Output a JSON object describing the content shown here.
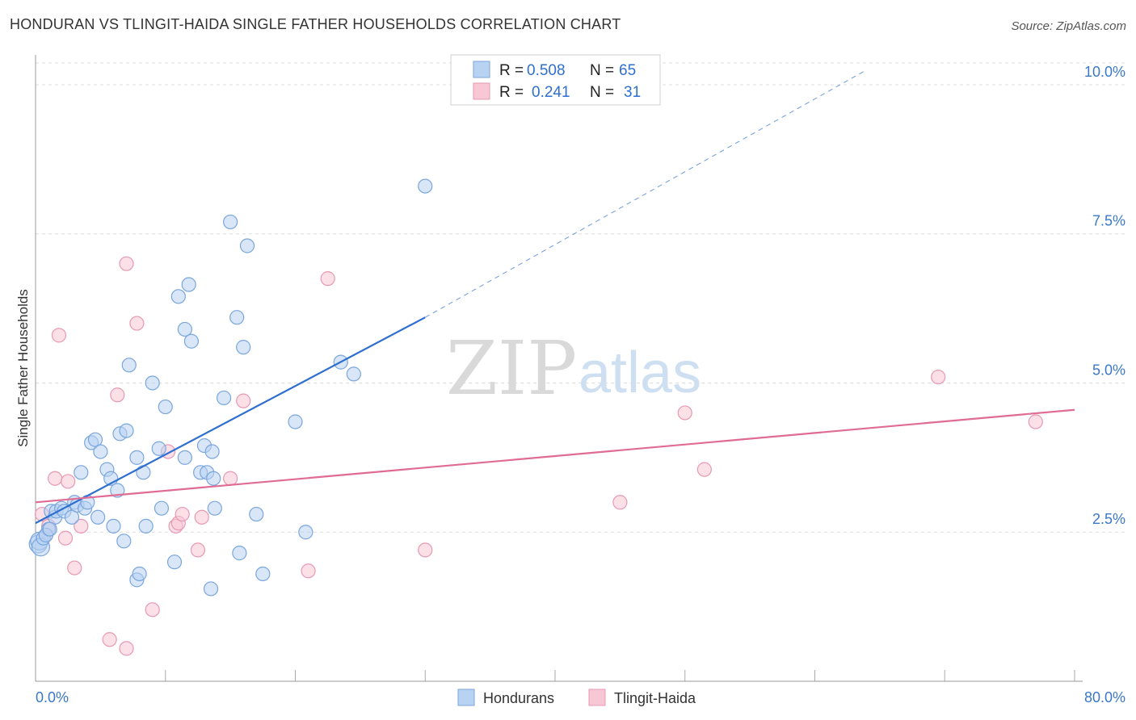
{
  "header": {
    "title": "HONDURAN VS TLINGIT-HAIDA SINGLE FATHER HOUSEHOLDS CORRELATION CHART",
    "source": "Source: ZipAtlas.com"
  },
  "watermark": {
    "zip": "ZIP",
    "atlas": "atlas"
  },
  "legend_top": {
    "r_label": "R =",
    "n_label": "N =",
    "rows": [
      {
        "r": "0.508",
        "n": "65"
      },
      {
        "r": "0.241",
        "n": "31"
      }
    ]
  },
  "colors": {
    "blue": "#2f6fd0",
    "blue_fill": "#b8d2f2",
    "blue_stroke": "#7aa6dc",
    "pink": "#e06b93",
    "pink_fill": "#f7c7d6",
    "pink_stroke": "#e799b3",
    "grid": "#dddddd",
    "tick_text": "#3a78c9"
  },
  "chart_data": {
    "type": "scatter",
    "title": "HONDURAN VS TLINGIT-HAIDA SINGLE FATHER HOUSEHOLDS CORRELATION CHART",
    "xlabel": "",
    "ylabel": "Single Father Households",
    "xlim": [
      0,
      80
    ],
    "ylim": [
      0,
      10.5
    ],
    "x_tick_labels": [
      "0.0%",
      "80.0%"
    ],
    "y_ticks": [
      {
        "value": 2.5,
        "label": "2.5%"
      },
      {
        "value": 5.0,
        "label": "5.0%"
      },
      {
        "value": 7.5,
        "label": "7.5%"
      },
      {
        "value": 10.0,
        "label": "10.0%"
      }
    ],
    "grid": true,
    "legend_position": "bottom-center",
    "series": [
      {
        "name": "Hondurans",
        "R": 0.508,
        "N": 65,
        "trend": {
          "x0": 0.0,
          "y0": 2.65,
          "x1": 30.0,
          "y1": 6.1,
          "dashed_to_x": 64.0,
          "dashed_to_y": 10.25
        },
        "points": [
          [
            0.2,
            2.3
          ],
          [
            0.3,
            2.35
          ],
          [
            0.4,
            2.25
          ],
          [
            0.6,
            2.4
          ],
          [
            1.0,
            2.55
          ],
          [
            1.2,
            2.85
          ],
          [
            1.5,
            2.75
          ],
          [
            1.6,
            2.85
          ],
          [
            2.0,
            2.9
          ],
          [
            2.2,
            2.85
          ],
          [
            2.8,
            2.75
          ],
          [
            3.0,
            3.0
          ],
          [
            3.2,
            2.95
          ],
          [
            3.5,
            3.5
          ],
          [
            3.8,
            2.9
          ],
          [
            4.0,
            3.0
          ],
          [
            4.3,
            4.0
          ],
          [
            4.6,
            4.05
          ],
          [
            4.8,
            2.75
          ],
          [
            5.0,
            3.85
          ],
          [
            5.5,
            3.55
          ],
          [
            5.8,
            3.4
          ],
          [
            6.0,
            2.6
          ],
          [
            6.3,
            3.2
          ],
          [
            6.5,
            4.15
          ],
          [
            6.8,
            2.35
          ],
          [
            7.0,
            4.2
          ],
          [
            7.2,
            5.3
          ],
          [
            7.8,
            1.7
          ],
          [
            7.8,
            3.75
          ],
          [
            8.0,
            1.8
          ],
          [
            8.3,
            3.5
          ],
          [
            8.5,
            2.6
          ],
          [
            9.0,
            5.0
          ],
          [
            9.5,
            3.9
          ],
          [
            9.7,
            2.9
          ],
          [
            10.0,
            4.6
          ],
          [
            10.7,
            2.0
          ],
          [
            11.0,
            6.45
          ],
          [
            11.5,
            5.9
          ],
          [
            11.5,
            3.75
          ],
          [
            11.8,
            6.65
          ],
          [
            12.0,
            5.7
          ],
          [
            12.7,
            3.5
          ],
          [
            13.0,
            3.95
          ],
          [
            13.2,
            3.5
          ],
          [
            13.5,
            1.55
          ],
          [
            13.6,
            3.85
          ],
          [
            13.7,
            3.4
          ],
          [
            13.8,
            2.9
          ],
          [
            14.5,
            4.75
          ],
          [
            15.0,
            7.7
          ],
          [
            15.5,
            6.1
          ],
          [
            15.7,
            2.15
          ],
          [
            16.0,
            5.6
          ],
          [
            16.3,
            7.3
          ],
          [
            17.0,
            2.8
          ],
          [
            17.5,
            1.8
          ],
          [
            20.0,
            4.35
          ],
          [
            20.8,
            2.5
          ],
          [
            23.5,
            5.35
          ],
          [
            24.5,
            5.15
          ],
          [
            30.0,
            8.3
          ],
          [
            0.8,
            2.45
          ],
          [
            1.1,
            2.55
          ]
        ]
      },
      {
        "name": "Tlingit-Haida",
        "R": 0.241,
        "N": 31,
        "trend": {
          "x0": 0.0,
          "y0": 3.0,
          "x1": 80.0,
          "y1": 4.55
        },
        "points": [
          [
            0.5,
            2.8
          ],
          [
            0.8,
            2.45
          ],
          [
            1.0,
            2.6
          ],
          [
            1.5,
            3.4
          ],
          [
            1.8,
            5.8
          ],
          [
            2.3,
            2.4
          ],
          [
            2.5,
            3.35
          ],
          [
            3.0,
            1.9
          ],
          [
            3.5,
            2.6
          ],
          [
            5.7,
            0.7
          ],
          [
            6.3,
            4.8
          ],
          [
            7.0,
            0.55
          ],
          [
            7.0,
            7.0
          ],
          [
            7.8,
            6.0
          ],
          [
            9.0,
            1.2
          ],
          [
            10.2,
            3.85
          ],
          [
            10.8,
            2.6
          ],
          [
            11.0,
            2.65
          ],
          [
            11.3,
            2.8
          ],
          [
            12.5,
            2.2
          ],
          [
            12.8,
            2.75
          ],
          [
            15.0,
            3.4
          ],
          [
            16.0,
            4.7
          ],
          [
            21.0,
            1.85
          ],
          [
            22.5,
            6.75
          ],
          [
            30.0,
            2.2
          ],
          [
            45.0,
            3.0
          ],
          [
            50.0,
            4.5
          ],
          [
            51.5,
            3.55
          ],
          [
            69.5,
            5.1
          ],
          [
            77.0,
            4.35
          ]
        ]
      }
    ]
  },
  "legend_bottom": {
    "items": [
      "Hondurans",
      "Tlingit-Haida"
    ]
  }
}
